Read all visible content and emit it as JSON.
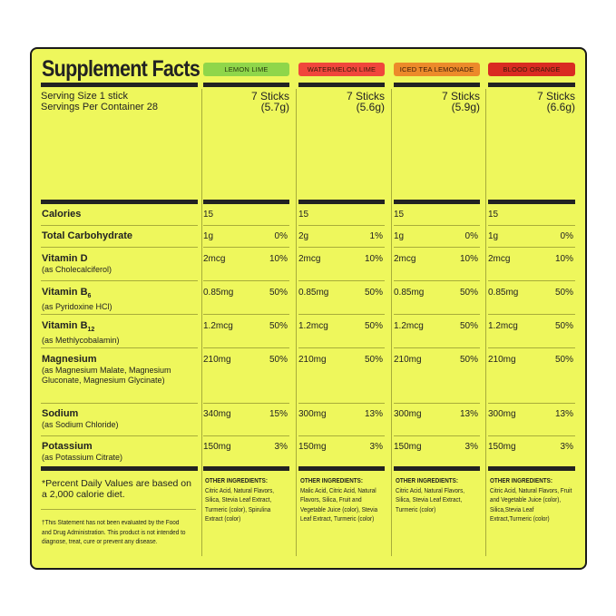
{
  "title": "Supplement Facts",
  "serving": {
    "size": "Serving Size 1 stick",
    "per_container": "Servings Per Container 28"
  },
  "flavors": [
    {
      "name": "Lemon Lime",
      "color": "#8fd64a",
      "sticks": "7 Sticks",
      "weight": "(5.7g)",
      "ingredients": "Citric Acid, Natural Flavors, Silica, Stevia Leaf Extract, Turmeric (color), Spirulina Extract (color)"
    },
    {
      "name": "Watermelon Lime",
      "color": "#f0463c",
      "sticks": "7 Sticks",
      "weight": "(5.6g)",
      "ingredients": "Malic Acid, Citric Acid, Natural Flavors, Silica, Fruit and Vegetable Juice (color), Stevia Leaf Extract, Turmeric (color)"
    },
    {
      "name": "Iced Tea Lemonade",
      "color": "#ec8a2a",
      "sticks": "7 Sticks",
      "weight": "(5.9g)",
      "ingredients": "Citric Acid, Natural Flavors, Silica, Stevia Leaf Extract, Turmeric (color)"
    },
    {
      "name": "Blood Orange",
      "color": "#d92b22",
      "sticks": "7 Sticks",
      "weight": "(6.6g)",
      "ingredients": "Citric Acid, Natural Flavors, Fruit and Vegetable Juice (color), Silica,Stevia Leaf Extract,Turmeric (color)"
    }
  ],
  "rows": [
    {
      "name": "Calories",
      "sub_script": "",
      "source": "",
      "values": [
        [
          "15",
          ""
        ],
        [
          "15",
          ""
        ],
        [
          "15",
          ""
        ],
        [
          "15",
          ""
        ]
      ]
    },
    {
      "name": "Total Carbohydrate",
      "sub_script": "",
      "source": "",
      "values": [
        [
          "1g",
          "0%"
        ],
        [
          "2g",
          "1%"
        ],
        [
          "1g",
          "0%"
        ],
        [
          "1g",
          "0%"
        ]
      ]
    },
    {
      "name": "Vitamin D",
      "sub_script": "",
      "source": "(as Cholecalciferol)",
      "values": [
        [
          "2mcg",
          "10%"
        ],
        [
          "2mcg",
          "10%"
        ],
        [
          "2mcg",
          "10%"
        ],
        [
          "2mcg",
          "10%"
        ]
      ]
    },
    {
      "name": "Vitamin B",
      "sub_script": "6",
      "source": "(as Pyridoxine HCl)",
      "values": [
        [
          "0.85mg",
          "50%"
        ],
        [
          "0.85mg",
          "50%"
        ],
        [
          "0.85mg",
          "50%"
        ],
        [
          "0.85mg",
          "50%"
        ]
      ]
    },
    {
      "name": "Vitamin B",
      "sub_script": "12",
      "source": "(as Methlycobalamin)",
      "values": [
        [
          "1.2mcg",
          "50%"
        ],
        [
          "1.2mcg",
          "50%"
        ],
        [
          "1.2mcg",
          "50%"
        ],
        [
          "1.2mcg",
          "50%"
        ]
      ]
    },
    {
      "name": "Magnesium",
      "sub_script": "",
      "source": "(as Magnesium Malate, Magnesium Gluconate, Magnesium Glycinate)",
      "values": [
        [
          "210mg",
          "50%"
        ],
        [
          "210mg",
          "50%"
        ],
        [
          "210mg",
          "50%"
        ],
        [
          "210mg",
          "50%"
        ]
      ]
    },
    {
      "name": "Sodium",
      "sub_script": "",
      "source": "(as Sodium Chloride)",
      "values": [
        [
          "340mg",
          "15%"
        ],
        [
          "300mg",
          "13%"
        ],
        [
          "300mg",
          "13%"
        ],
        [
          "300mg",
          "13%"
        ]
      ]
    },
    {
      "name": "Potassium",
      "sub_script": "",
      "source": "(as Potassium Citrate)",
      "values": [
        [
          "150mg",
          "3%"
        ],
        [
          "150mg",
          "3%"
        ],
        [
          "150mg",
          "3%"
        ],
        [
          "150mg",
          "3%"
        ]
      ]
    }
  ],
  "other_ingredients_label": "OTHER INGREDIENTS:",
  "footnotes": {
    "daily_value": "*Percent Daily Values are based on a 2,000 calorie diet.",
    "fda": "†This Statement has not been evaluated by the Food and Drug Administration. This product is not intended to diagnose, treat, cure or prevent any disease."
  }
}
